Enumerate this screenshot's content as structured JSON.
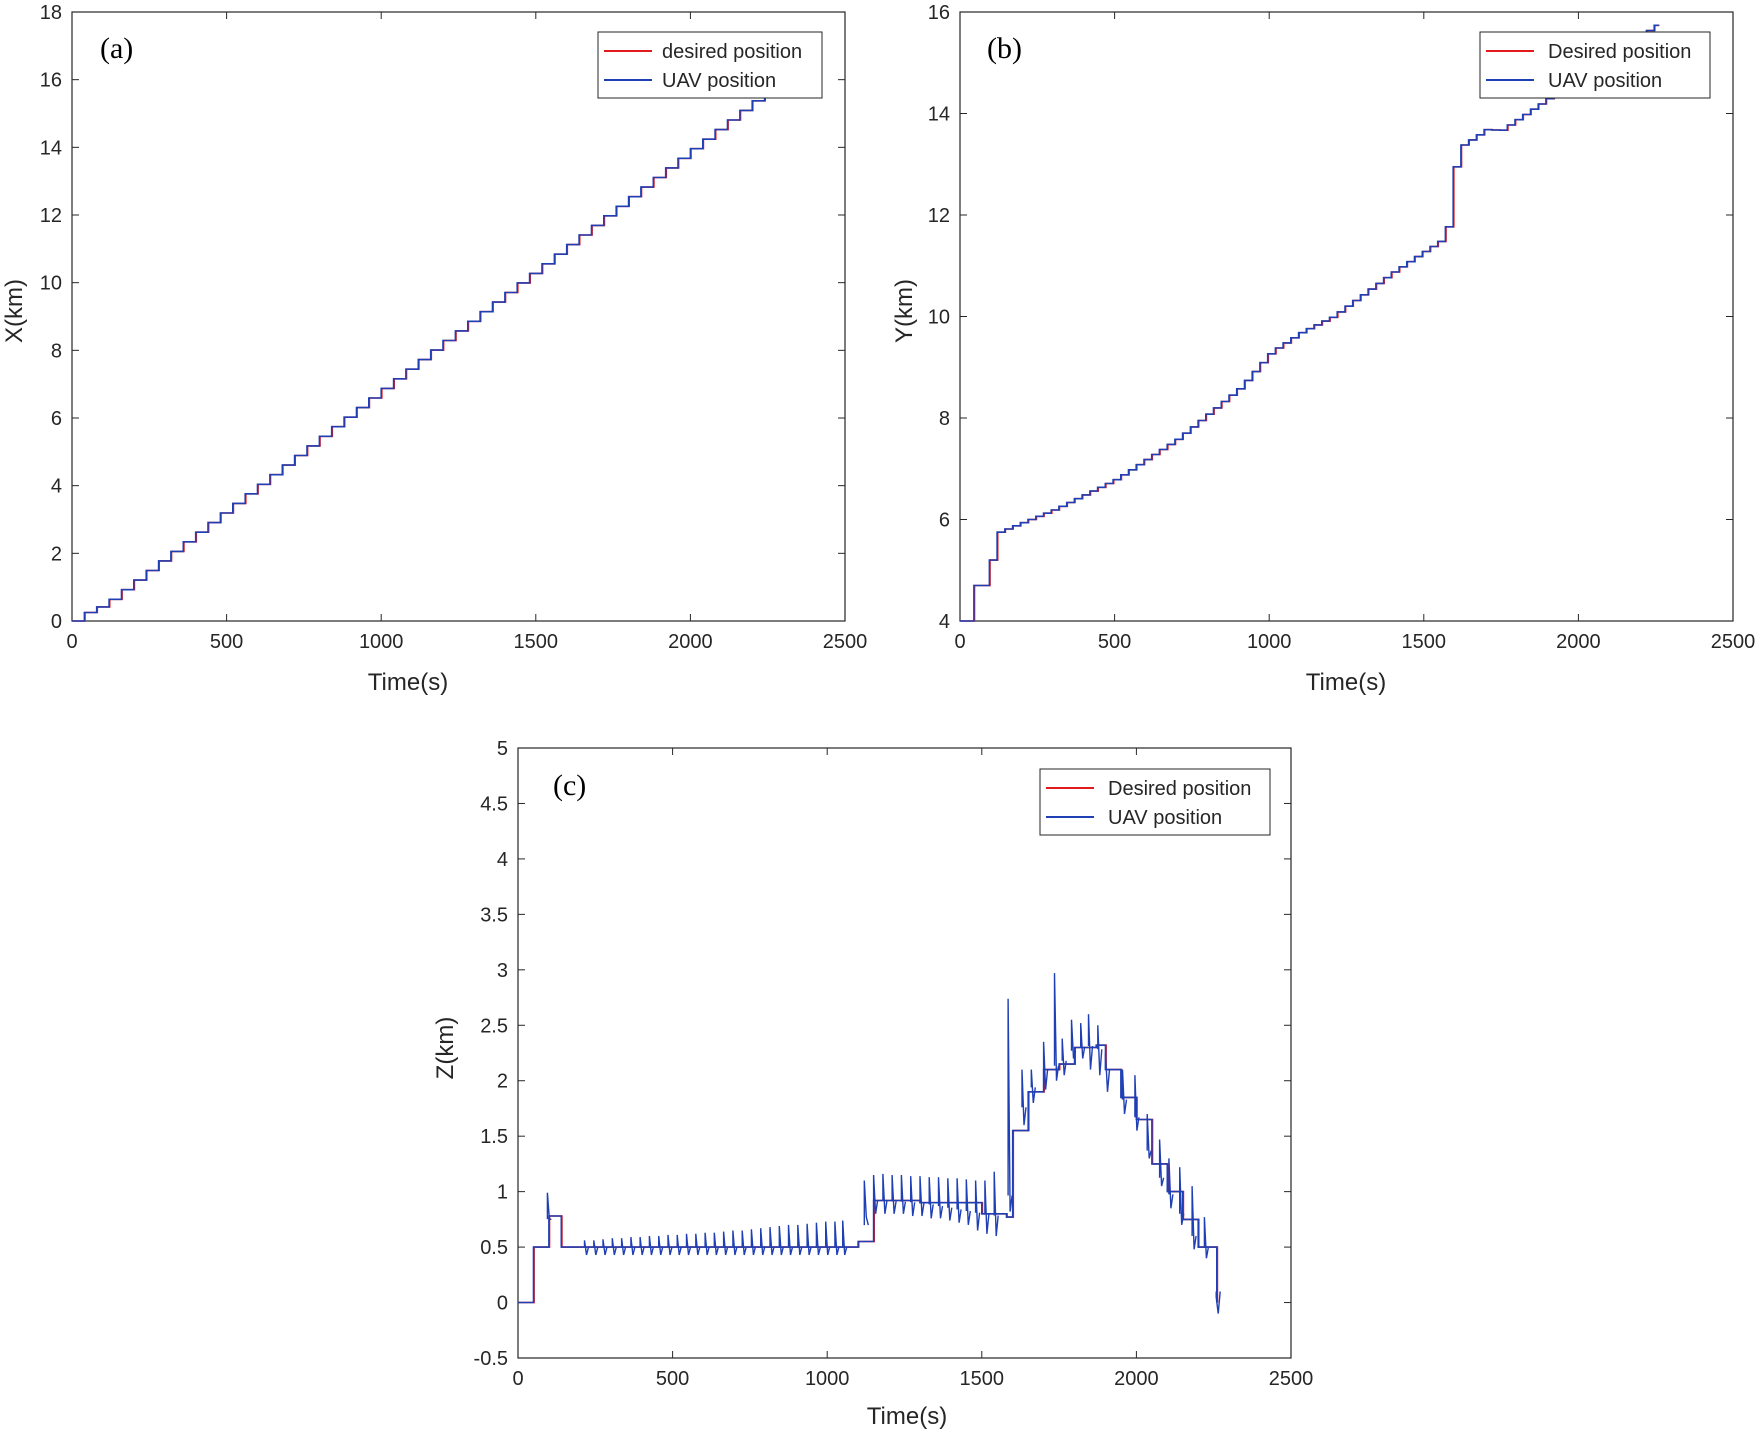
{
  "chart_data": [
    {
      "id": "a",
      "type": "line",
      "panel_label": "(a)",
      "title": "",
      "xlabel": "Time(s)",
      "ylabel": "X(km)",
      "xlim": [
        0,
        2500
      ],
      "ylim": [
        0,
        18
      ],
      "xticks": [
        0,
        500,
        1000,
        1500,
        2000,
        2500
      ],
      "yticks": [
        0,
        2,
        4,
        6,
        8,
        10,
        12,
        14,
        16,
        18
      ],
      "legend_position": "top-right",
      "colors": {
        "desired": "#e31a1c",
        "uav": "#1f3fb4"
      },
      "series": [
        {
          "name": "desired position",
          "x": [
            0,
            40,
            100,
            2260
          ],
          "y": [
            0,
            0.25,
            0.5,
            15.8
          ],
          "shape": "staircase",
          "step": 40
        },
        {
          "name": "UAV position",
          "x": [
            0,
            40,
            100,
            2260
          ],
          "y": [
            0,
            0.25,
            0.5,
            15.8
          ],
          "shape": "staircase",
          "step": 40
        }
      ]
    },
    {
      "id": "b",
      "type": "line",
      "panel_label": "(b)",
      "title": "",
      "xlabel": "Time(s)",
      "ylabel": "Y(km)",
      "xlim": [
        0,
        2500
      ],
      "ylim": [
        4,
        16
      ],
      "xticks": [
        0,
        500,
        1000,
        1500,
        2000,
        2500
      ],
      "yticks": [
        4,
        6,
        8,
        10,
        12,
        14,
        16
      ],
      "legend_position": "top-right",
      "colors": {
        "desired": "#e31a1c",
        "uav": "#1f3fb4"
      },
      "series": [
        {
          "name": "Desired position",
          "x": [
            0,
            45,
            90,
            100,
            300,
            500,
            700,
            900,
            1000,
            1100,
            1200,
            1400,
            1550,
            1580,
            1600,
            1700,
            1740,
            2260
          ],
          "y": [
            4.0,
            4.7,
            4.7,
            5.7,
            6.2,
            6.8,
            7.6,
            8.6,
            9.3,
            9.7,
            10.0,
            10.9,
            11.5,
            11.9,
            13.3,
            13.7,
            13.65,
            15.8
          ],
          "shape": "staircase",
          "step": 25
        },
        {
          "name": "UAV position",
          "x": [
            0,
            45,
            90,
            100,
            300,
            500,
            700,
            900,
            1000,
            1100,
            1200,
            1400,
            1550,
            1580,
            1600,
            1700,
            1740,
            2260
          ],
          "y": [
            4.0,
            4.7,
            4.7,
            5.7,
            6.2,
            6.8,
            7.6,
            8.6,
            9.3,
            9.7,
            10.0,
            10.9,
            11.5,
            11.9,
            13.3,
            13.7,
            13.65,
            15.8
          ],
          "shape": "staircase",
          "step": 25
        }
      ]
    },
    {
      "id": "c",
      "type": "line",
      "panel_label": "(c)",
      "title": "",
      "xlabel": "Time(s)",
      "ylabel": "Z(km)",
      "xlim": [
        0,
        2500
      ],
      "ylim": [
        -0.5,
        5
      ],
      "xticks": [
        0,
        500,
        1000,
        1500,
        2000,
        2500
      ],
      "yticks": [
        -0.5,
        0,
        0.5,
        1,
        1.5,
        2,
        2.5,
        3,
        3.5,
        4,
        4.5,
        5
      ],
      "yticklabels": [
        "-0.5",
        "0",
        "0.5",
        "1",
        "1.5",
        "2",
        "2.5",
        "3",
        "3.5",
        "4",
        "4.5",
        "5"
      ],
      "legend_position": "top-right",
      "colors": {
        "desired": "#e31a1c",
        "uav": "#1f3fb4"
      },
      "series": [
        {
          "name": "Desired position",
          "x": [
            0,
            50,
            100,
            140,
            1050,
            1100,
            1150,
            1300,
            1500,
            1580,
            1600,
            1650,
            1700,
            1750,
            1800,
            1870,
            1900,
            1950,
            2000,
            2050,
            2100,
            2150,
            2200,
            2250,
            2260
          ],
          "y": [
            0,
            0.5,
            0.78,
            0.5,
            0.5,
            0.55,
            0.92,
            0.9,
            0.8,
            0.77,
            1.55,
            1.9,
            2.1,
            2.15,
            2.3,
            2.32,
            2.1,
            1.85,
            1.65,
            1.25,
            1.0,
            0.75,
            0.5,
            0.5,
            0.0
          ]
        },
        {
          "name": "UAV position",
          "x": [
            0,
            50,
            100,
            140,
            1050,
            1100,
            1150,
            1300,
            1500,
            1580,
            1600,
            1650,
            1700,
            1750,
            1800,
            1870,
            1900,
            1950,
            2000,
            2050,
            2100,
            2150,
            2200,
            2250,
            2260
          ],
          "y": [
            0,
            0.5,
            0.78,
            0.5,
            0.5,
            0.55,
            0.92,
            0.9,
            0.8,
            0.77,
            1.55,
            1.9,
            2.1,
            2.15,
            2.3,
            2.32,
            2.1,
            1.85,
            1.65,
            1.25,
            1.0,
            0.75,
            0.5,
            0.5,
            0.0
          ]
        }
      ],
      "spikes": {
        "x": [
          95,
          215,
          245,
          275,
          305,
          335,
          365,
          395,
          425,
          455,
          485,
          515,
          545,
          575,
          605,
          635,
          665,
          695,
          725,
          755,
          785,
          815,
          845,
          875,
          905,
          935,
          965,
          995,
          1025,
          1050,
          1120,
          1150,
          1180,
          1210,
          1240,
          1270,
          1300,
          1330,
          1360,
          1390,
          1420,
          1450,
          1480,
          1510,
          1540,
          1585,
          1630,
          1660,
          1700,
          1735,
          1760,
          1790,
          1820,
          1845,
          1875,
          1900,
          1955,
          1995,
          2035,
          2075,
          2105,
          2140,
          2180,
          2220,
          2258
        ],
        "peak": [
          0.99,
          0.56,
          0.56,
          0.57,
          0.58,
          0.58,
          0.59,
          0.59,
          0.6,
          0.6,
          0.61,
          0.61,
          0.62,
          0.62,
          0.63,
          0.63,
          0.64,
          0.65,
          0.65,
          0.66,
          0.67,
          0.68,
          0.69,
          0.7,
          0.7,
          0.71,
          0.72,
          0.73,
          0.73,
          0.74,
          1.1,
          1.15,
          1.16,
          1.15,
          1.15,
          1.14,
          1.14,
          1.13,
          1.13,
          1.12,
          1.12,
          1.11,
          1.1,
          1.1,
          1.18,
          2.74,
          2.1,
          2.1,
          2.35,
          2.97,
          2.38,
          2.55,
          2.52,
          2.6,
          2.5,
          2.25,
          2.1,
          2.05,
          1.7,
          1.47,
          1.3,
          1.22,
          1.05,
          0.77,
          0.05
        ],
        "dip": [
          0.75,
          0.43,
          0.43,
          0.43,
          0.43,
          0.43,
          0.43,
          0.43,
          0.43,
          0.43,
          0.43,
          0.43,
          0.43,
          0.43,
          0.43,
          0.43,
          0.43,
          0.43,
          0.43,
          0.43,
          0.43,
          0.43,
          0.43,
          0.43,
          0.43,
          0.43,
          0.43,
          0.43,
          0.43,
          0.43,
          0.77,
          0.8,
          0.8,
          0.8,
          0.8,
          0.78,
          0.78,
          0.76,
          0.76,
          0.74,
          0.72,
          0.7,
          0.65,
          0.62,
          0.6,
          0.82,
          1.6,
          1.8,
          1.92,
          2.0,
          2.05,
          2.2,
          2.2,
          2.1,
          2.05,
          1.9,
          1.7,
          1.55,
          1.3,
          1.05,
          0.85,
          0.7,
          0.48,
          0.4,
          -0.1
        ]
      }
    }
  ]
}
